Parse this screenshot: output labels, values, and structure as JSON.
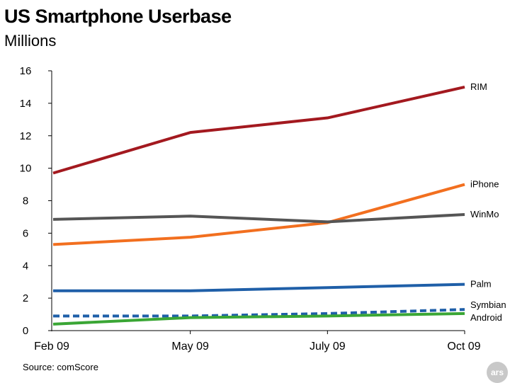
{
  "chart_data": {
    "type": "line",
    "title": "US Smartphone Userbase",
    "subtitle": "Millions",
    "source": "Source: comScore",
    "badge": "ars",
    "categories": [
      "Feb 09",
      "May 09",
      "July 09",
      "Oct 09"
    ],
    "y_ticks": [
      "0",
      "2",
      "4",
      "6",
      "8",
      "10",
      "12",
      "14",
      "16"
    ],
    "ylim": [
      0,
      16
    ],
    "grid": false,
    "legend": "labels at line ends (right)",
    "series": [
      {
        "name": "RIM",
        "values": [
          9.7,
          12.2,
          13.1,
          15.0
        ],
        "color": "#a3191f",
        "dashed": false
      },
      {
        "name": "iPhone",
        "values": [
          5.3,
          5.75,
          6.65,
          9.0
        ],
        "color": "#f26f1f",
        "dashed": false
      },
      {
        "name": "WinMo",
        "values": [
          6.85,
          7.05,
          6.7,
          7.15
        ],
        "color": "#555555",
        "dashed": false
      },
      {
        "name": "Palm",
        "values": [
          2.45,
          2.45,
          2.65,
          2.85
        ],
        "color": "#1f5fa8",
        "dashed": false
      },
      {
        "name": "Symbian",
        "values": [
          0.9,
          0.9,
          1.05,
          1.3
        ],
        "color": "#1f5fa8",
        "dashed": true
      },
      {
        "name": "Android",
        "values": [
          0.4,
          0.8,
          0.9,
          1.05
        ],
        "color": "#3aa635",
        "dashed": false
      }
    ]
  }
}
